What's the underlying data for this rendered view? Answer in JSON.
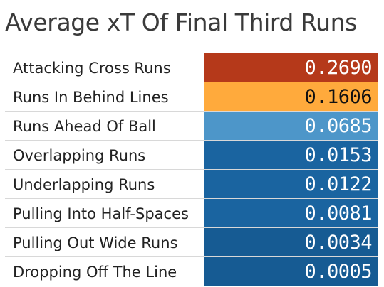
{
  "colors": {
    "high": "#b5391a",
    "second": "#ffaa3c",
    "third": "#4d96c9",
    "base": "#1a64a0",
    "base_dark": "#165b93",
    "text_light": "#ffffff",
    "text_dark": "#111111"
  },
  "chart_data": {
    "type": "table",
    "title": "Average xT Of Final Third Runs",
    "categories": [
      "Attacking Cross Runs",
      "Runs In Behind Lines",
      "Runs Ahead Of Ball",
      "Overlapping Runs",
      "Underlapping Runs",
      "Pulling Into Half-Spaces",
      "Pulling Out Wide Runs",
      "Dropping Off The Line"
    ],
    "values": [
      0.269,
      0.1606,
      0.0685,
      0.0153,
      0.0122,
      0.0081,
      0.0034,
      0.0005
    ],
    "value_labels": [
      "0.2690",
      "0.1606",
      "0.0685",
      "0.0153",
      "0.0122",
      "0.0081",
      "0.0034",
      "0.0005"
    ]
  }
}
